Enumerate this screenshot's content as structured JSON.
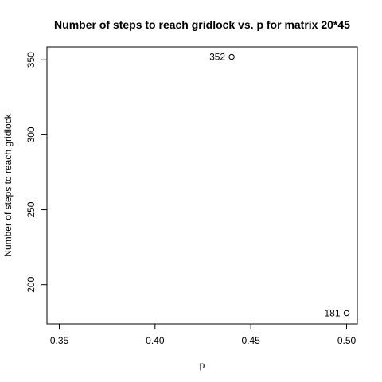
{
  "chart_data": {
    "type": "scatter",
    "title": "Number of steps to reach gridlock vs. p for matrix 20*45",
    "xlabel": "p",
    "ylabel": "Number of steps to reach gridlock",
    "x": [
      0.44,
      0.5
    ],
    "y": [
      352,
      181
    ],
    "point_labels": [
      "352",
      "181"
    ],
    "xlim": [
      0.35,
      0.5
    ],
    "ylim": [
      181,
      352
    ],
    "xticks": [
      0.35,
      0.4,
      0.45,
      0.5
    ],
    "xtick_labels": [
      "0.35",
      "0.40",
      "0.45",
      "0.50"
    ],
    "yticks": [
      200,
      250,
      300,
      350
    ],
    "ytick_labels": [
      "200",
      "250",
      "300",
      "350"
    ],
    "marker": "open-circle",
    "grid": false,
    "legend": "none"
  }
}
